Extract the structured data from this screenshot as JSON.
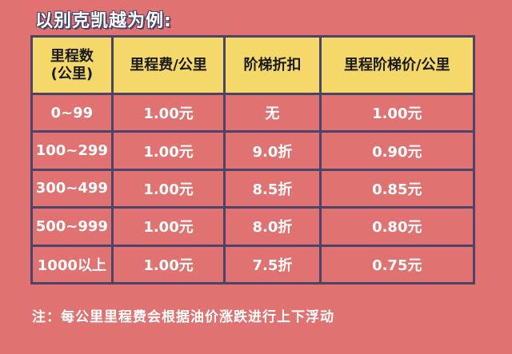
{
  "title": "以别克凯越为例:",
  "table": {
    "headers": {
      "mileage_line1": "里程数",
      "mileage_line2": "(公里)",
      "fee_per_km": "里程费/公里",
      "tier_discount": "阶梯折扣",
      "tier_price_per_km": "里程阶梯价/公里"
    },
    "rows": [
      {
        "mileage": "0~99",
        "fee": "1.00元",
        "discount": "无",
        "price": "1.00元"
      },
      {
        "mileage": "100~299",
        "fee": "1.00元",
        "discount": "9.0折",
        "price": "0.90元"
      },
      {
        "mileage": "300~499",
        "fee": "1.00元",
        "discount": "8.5折",
        "price": "0.85元"
      },
      {
        "mileage": "500~999",
        "fee": "1.00元",
        "discount": "8.0折",
        "price": "0.80元"
      },
      {
        "mileage": "1000以上",
        "fee": "1.00元",
        "discount": "7.5折",
        "price": "0.75元"
      }
    ]
  },
  "note": "注：每公里里程费会根据油价涨跌进行上下浮动",
  "colors": {
    "background": "#e07272",
    "header_fill": "#f4d96a",
    "border": "#4a4468",
    "text": "#ffffff"
  }
}
